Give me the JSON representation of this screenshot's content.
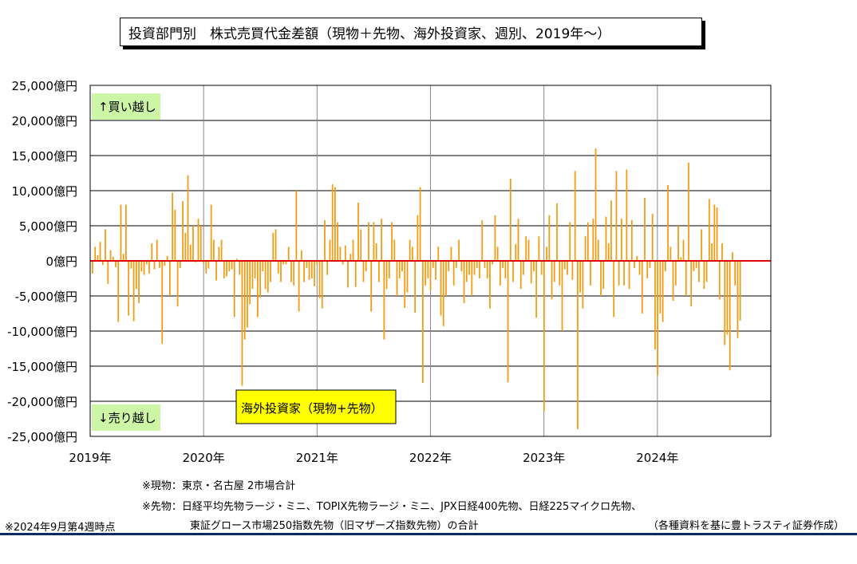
{
  "title": "投資部門別　株式売買代金差額（現物＋先物、海外投資家、週別、2019年～）",
  "chart_data": {
    "type": "bar",
    "series": [
      {
        "name": "海外投資家（現物+先物）",
        "color": "#f39c12"
      }
    ],
    "x_tick_labels": [
      "2019年",
      "2020年",
      "2021年",
      "2022年",
      "2023年",
      "2024年"
    ],
    "y_tick_labels": [
      "25,000億円",
      "20,000億円",
      "15,000億円",
      "10,000億円",
      "5,000億円",
      "0億円",
      "-5,000億円",
      "-10,000億円",
      "-15,000億円",
      "-20,000億円",
      "-25,000億円"
    ],
    "ylim": [
      -25000,
      25000
    ],
    "unit": "億円",
    "grid": true,
    "zero_line_color": "#e00000",
    "bar_color": "#f39c12",
    "upper_label": "↑買い越し",
    "lower_label": "↓売り越し",
    "legend_label": "海外投資家（現物+先物）",
    "legend_bg": "#ffff00",
    "label_bg": "#ccf5a6",
    "values": [
      -1800,
      2000,
      800,
      2700,
      -600,
      4500,
      -3300,
      1500,
      600,
      -900,
      -8700,
      8000,
      1000,
      8000,
      -7800,
      -1100,
      -8600,
      -4000,
      -6000,
      -1500,
      -2000,
      -500,
      -1800,
      2500,
      -1200,
      3000,
      -1000,
      -11800,
      -700,
      700,
      -5000,
      9700,
      7300,
      -6500,
      -1000,
      8500,
      4000,
      12200,
      2300,
      5000,
      -200,
      6000,
      5000,
      -300,
      -1800,
      -1100,
      8000,
      3000,
      -2800,
      2000,
      3000,
      -2500,
      -2200,
      -1500,
      -1200,
      -8000,
      300,
      -2000,
      -17800,
      -11200,
      -9500,
      -6200,
      -4000,
      -2500,
      -8000,
      -5200,
      -1500,
      -4000,
      -4500,
      -3000,
      4000,
      4500,
      -1800,
      -3000,
      -500,
      -500,
      2000,
      -3000,
      -3500,
      10000,
      -7200,
      1500,
      -3000,
      -1000,
      -2700,
      -2500,
      -3600,
      -500,
      -5300,
      -6800,
      5800,
      -2000,
      3000,
      10900,
      10500,
      5500,
      2000,
      -500,
      2200,
      -3800,
      1000,
      3000,
      -3700,
      8300,
      4500,
      -3000,
      -1500,
      5500,
      -7200,
      5500,
      2500,
      -3000,
      6000,
      -11200,
      -4000,
      -2500,
      5500,
      3000,
      -5000,
      -2500,
      -1500,
      -6700,
      -4500,
      3000,
      2000,
      -7400,
      6500,
      10500,
      -17400,
      -3500,
      -2500,
      -4200,
      -1000,
      -2700,
      2000,
      -7800,
      -9300,
      -5000,
      -1500,
      2000,
      -3500,
      -1000,
      3000,
      -1500,
      -6000,
      -3000,
      -2000,
      -5000,
      -2000,
      -1000,
      -2500,
      5800,
      -1000,
      -2500,
      -6800,
      -500,
      6500,
      2000,
      -3500,
      -1000,
      -2500,
      -17300,
      11700,
      -3000,
      2400,
      6000,
      -4000,
      -2000,
      3500,
      3000,
      -3200,
      -1500,
      -8100,
      3500,
      -2000,
      -21400,
      2000,
      6500,
      -5500,
      -3000,
      8200,
      -3500,
      -10000,
      -1200,
      -2000,
      5500,
      -2700,
      12800,
      -24000,
      -4500,
      -6800,
      3500,
      5500,
      -3500,
      6000,
      16000,
      3000,
      -5000,
      -4000,
      6300,
      2500,
      8600,
      -8000,
      12800,
      -3500,
      6000,
      -3500,
      13000,
      -4000,
      5800,
      -1000,
      700,
      -2000,
      -7500,
      9000,
      -2500,
      -1000,
      6700,
      -12600,
      -16300,
      -7500,
      -8700,
      -1500,
      10800,
      2000,
      -5700,
      -3500,
      5000,
      500,
      3000,
      -5000,
      14000,
      -6500,
      -1500,
      -1000,
      -3000,
      4500,
      -4000,
      -3000,
      8800,
      2500,
      8000,
      7600,
      -5500,
      2500,
      -12000,
      -10500,
      -15600,
      1200,
      -3500,
      -11000,
      -8500
    ]
  },
  "notes": {
    "line1": "※現物：東京・名古屋 2市場合計",
    "line2": "※先物：日経平均先物ラージ・ミニ、TOPIX先物ラージ・ミニ、JPX日経400先物、日経225マイクロ先物、",
    "line3": "東証グロース市場250指数先物（旧マザーズ指数先物）の合計",
    "as_of": "※2024年9月第4週時点",
    "source": "（各種資料を基に豊トラスティ証券作成）"
  }
}
